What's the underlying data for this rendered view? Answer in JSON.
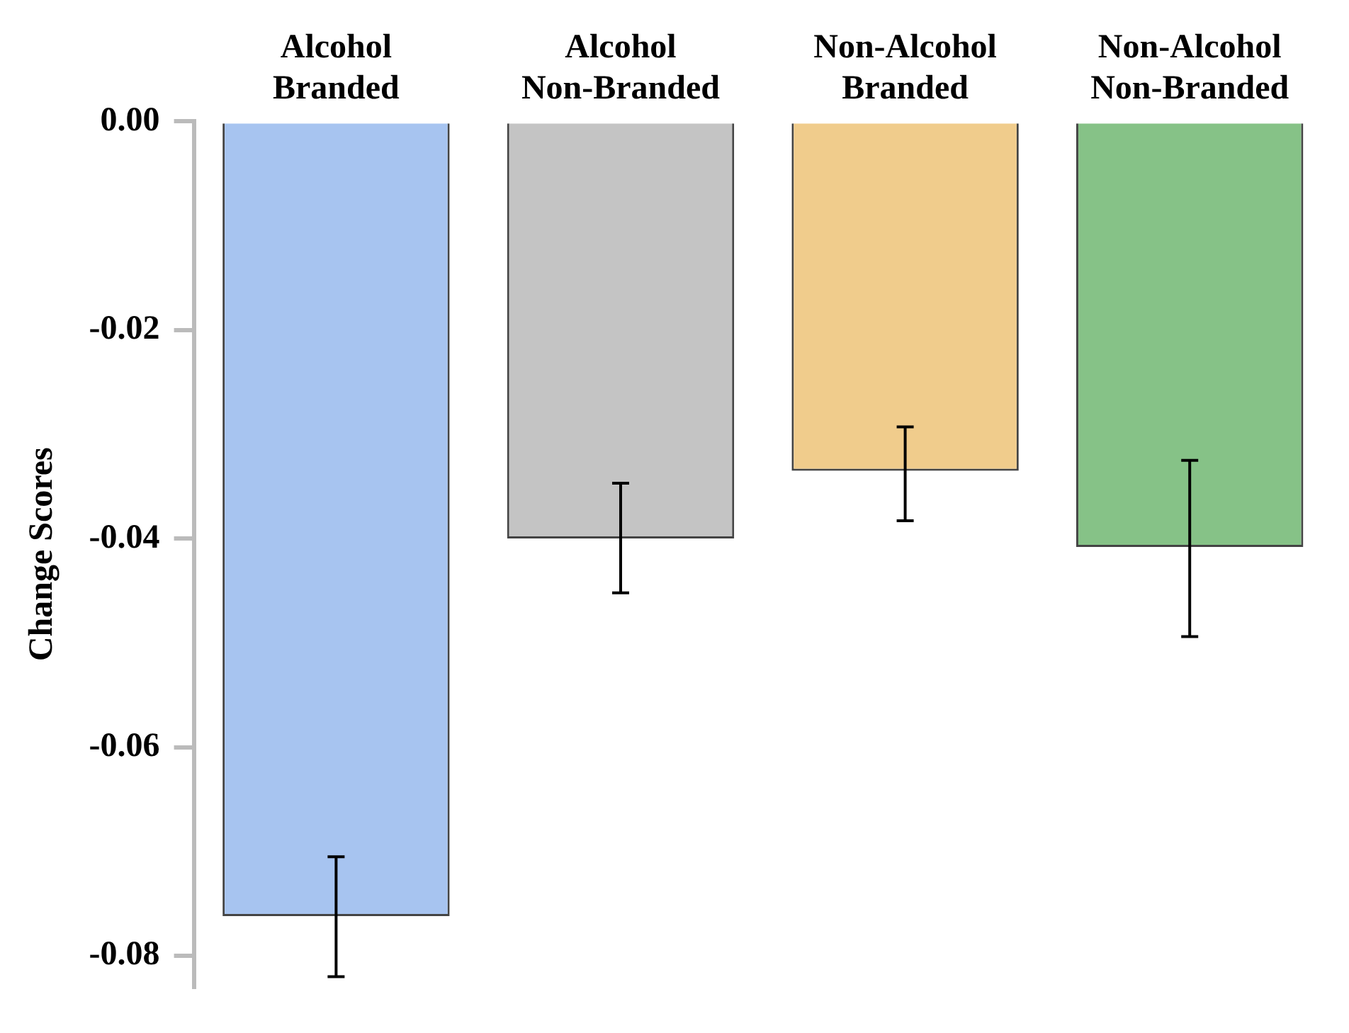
{
  "chart_data": {
    "type": "bar",
    "ylabel": "Change Scores",
    "categories": [
      "Alcohol Branded",
      "Alcohol Non-Branded",
      "Non-Alcohol Branded",
      "Non-Alcohol Non-Branded"
    ],
    "values": [
      -0.0762,
      -0.04,
      -0.0335,
      -0.0408
    ],
    "colors": [
      "#a7c4f0",
      "#c4c4c4",
      "#f0cc8c",
      "#86c287"
    ],
    "errors": [
      [
        -0.082,
        -0.0705
      ],
      [
        -0.0452,
        -0.0347
      ],
      [
        -0.0383,
        -0.0293
      ],
      [
        -0.0494,
        -0.0325
      ]
    ],
    "ylim": [
      -0.083,
      0
    ],
    "yticks": [
      {
        "value": 0,
        "label": "0.00"
      },
      {
        "value": -0.02,
        "label": "-0.02"
      },
      {
        "value": -0.04,
        "label": "-0.04"
      },
      {
        "value": -0.06,
        "label": "-0.06"
      },
      {
        "value": -0.08,
        "label": "-0.08"
      }
    ],
    "grid": false,
    "legend": false
  }
}
